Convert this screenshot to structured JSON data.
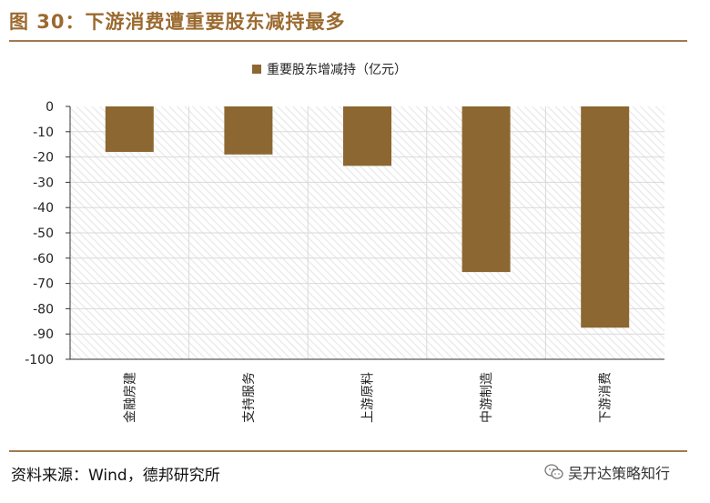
{
  "header": {
    "title": "图 30：下游消费遭重要股东减持最多"
  },
  "footer": {
    "source": "资料来源：Wind，德邦研究所",
    "watermark": "吴开达策略知行"
  },
  "colors": {
    "bar": "#8c6731",
    "accent": "#9b6a2f",
    "grid": "#d9d9d9"
  },
  "chart_data": {
    "type": "bar",
    "legend": "重要股东增减持（亿元）",
    "legend_position": "top",
    "categories": [
      "金融房建",
      "支持服务",
      "上游原料",
      "中游制造",
      "下游消费"
    ],
    "series": [
      {
        "name": "重要股东增减持（亿元）",
        "values": [
          -18,
          -19,
          -23.5,
          -65.5,
          -87.5
        ]
      }
    ],
    "ylim": [
      -100,
      0
    ],
    "yticks": [
      0,
      -10,
      -20,
      -30,
      -40,
      -50,
      -60,
      -70,
      -80,
      -90,
      -100
    ],
    "grid": true
  }
}
